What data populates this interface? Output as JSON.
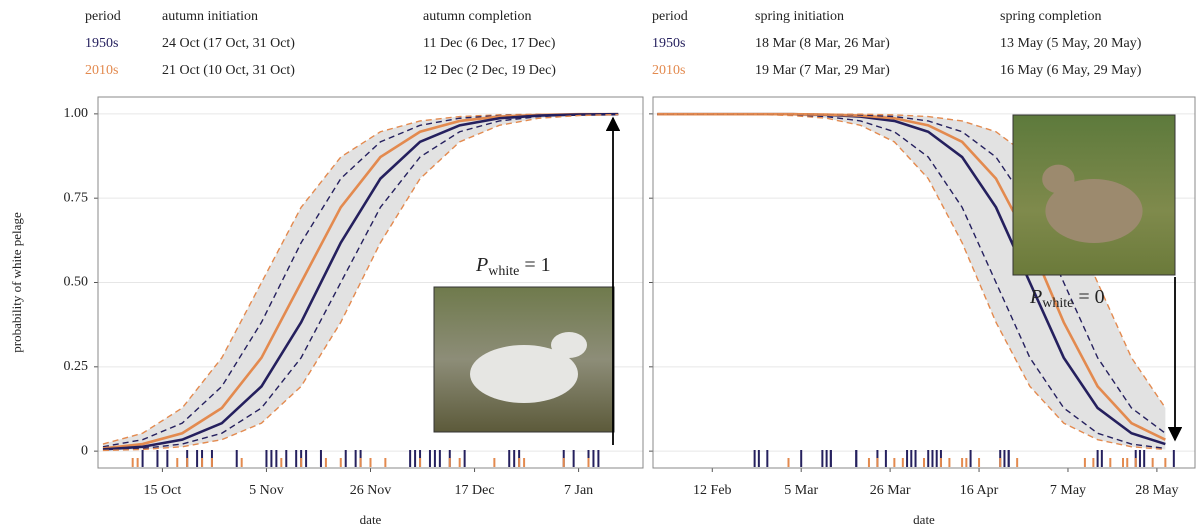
{
  "tables": [
    {
      "columns": [
        "period",
        "autumn initiation",
        "autumn completion"
      ],
      "rows": [
        {
          "color": "#25205e",
          "cells": [
            "1950s",
            "24 Oct (17 Oct, 31 Oct)",
            "11 Dec (6 Dec, 17 Dec)"
          ]
        },
        {
          "color": "#e38a4f",
          "cells": [
            "2010s",
            "21 Oct (10 Oct, 31 Oct)",
            "12 Dec (2 Dec, 19 Dec)"
          ]
        }
      ]
    },
    {
      "columns": [
        "period",
        "spring initiation",
        "spring completion"
      ],
      "rows": [
        {
          "color": "#25205e",
          "cells": [
            "1950s",
            "18 Mar (8 Mar, 26 Mar)",
            "13 May (5 May, 20 May)"
          ]
        },
        {
          "color": "#e38a4f",
          "cells": [
            "2010s",
            "19 Mar (7 Mar, 29 Mar)",
            "16 May (6 May, 29 May)"
          ]
        }
      ]
    }
  ],
  "chart_data": [
    {
      "type": "line",
      "ylabel": "probability of white pelage",
      "xlabel": "date",
      "xlim": [
        275,
        385
      ],
      "ylim": [
        -0.05,
        1.05
      ],
      "xticks": [
        {
          "value": 288,
          "label": "15 Oct"
        },
        {
          "value": 309,
          "label": "5 Nov"
        },
        {
          "value": 330,
          "label": "26 Nov"
        },
        {
          "value": 351,
          "label": "17 Dec"
        },
        {
          "value": 372,
          "label": "7 Jan"
        }
      ],
      "yticks": [
        0,
        0.25,
        {
          "value": 0.5,
          "label": "0.50"
        },
        0.75,
        {
          "value": 1,
          "label": "1.00"
        }
      ],
      "show_ytick_labels": true,
      "grid": true,
      "ribbon_color": "#e2e2e2",
      "x": [
        276,
        284,
        292,
        300,
        308,
        316,
        324,
        332,
        340,
        348,
        356,
        364,
        372,
        380
      ],
      "series": [
        {
          "color": "#e38a4f",
          "dashed": true,
          "values": [
            0.021,
            0.053,
            0.128,
            0.277,
            0.5,
            0.723,
            0.872,
            0.947,
            0.979,
            0.992,
            0.997,
            0.999,
            0.999,
            0.999
          ]
        },
        {
          "color": "#25205e",
          "dashed": true,
          "values": [
            0.013,
            0.034,
            0.083,
            0.192,
            0.382,
            0.618,
            0.808,
            0.917,
            0.966,
            0.987,
            0.995,
            0.998,
            0.999,
            0.999
          ]
        },
        {
          "color": "#e38a4f",
          "dashed": false,
          "values": [
            0.008,
            0.021,
            0.053,
            0.128,
            0.277,
            0.5,
            0.723,
            0.872,
            0.947,
            0.979,
            0.992,
            0.997,
            0.999,
            0.999
          ]
        },
        {
          "color": "#25205e",
          "dashed": false,
          "values": [
            0.005,
            0.013,
            0.034,
            0.083,
            0.192,
            0.382,
            0.618,
            0.808,
            0.917,
            0.966,
            0.987,
            0.995,
            0.998,
            0.999
          ]
        },
        {
          "color": "#25205e",
          "dashed": true,
          "values": [
            0.003,
            0.008,
            0.021,
            0.053,
            0.128,
            0.277,
            0.5,
            0.723,
            0.872,
            0.947,
            0.979,
            0.992,
            0.997,
            0.999
          ]
        },
        {
          "color": "#e38a4f",
          "dashed": true,
          "values": [
            0.002,
            0.005,
            0.013,
            0.034,
            0.083,
            0.192,
            0.382,
            0.618,
            0.808,
            0.917,
            0.966,
            0.987,
            0.995,
            0.998
          ]
        }
      ],
      "rug": [
        {
          "color": "#25205e",
          "x": [
            284,
            287,
            289,
            293,
            295,
            296,
            298,
            303,
            309,
            310,
            311,
            313,
            315,
            316,
            317,
            320,
            325,
            327,
            328,
            338,
            339,
            340,
            342,
            343,
            344,
            346,
            349,
            358,
            359,
            360,
            369,
            371,
            374,
            375,
            376
          ]
        },
        {
          "color": "#e38a4f",
          "x": [
            282,
            283,
            291,
            293,
            296,
            298,
            304,
            312,
            316,
            321,
            324,
            328,
            330,
            333,
            340,
            346,
            348,
            355,
            360,
            361,
            369,
            374
          ]
        }
      ],
      "annotation": {
        "symbol": "P",
        "subscript": "white",
        "text": "= 1",
        "direction": "up"
      }
    },
    {
      "type": "line",
      "xlabel": "date",
      "xlim": [
        29,
        157
      ],
      "ylim": [
        -0.05,
        1.05
      ],
      "xticks": [
        {
          "value": 43,
          "label": "12 Feb"
        },
        {
          "value": 64,
          "label": "5 Mar"
        },
        {
          "value": 85,
          "label": "26 Mar"
        },
        {
          "value": 106,
          "label": "16 Apr"
        },
        {
          "value": 127,
          "label": "7 May"
        },
        {
          "value": 148,
          "label": "28 May"
        }
      ],
      "yticks": [
        0,
        0.25,
        0.5,
        0.75,
        1
      ],
      "show_ytick_labels": false,
      "grid": true,
      "ribbon_color": "#e2e2e2",
      "x": [
        30,
        38,
        46,
        54,
        62,
        70,
        78,
        86,
        94,
        102,
        110,
        118,
        126,
        134,
        142,
        150
      ],
      "series": [
        {
          "color": "#e38a4f",
          "dashed": true,
          "values": [
            0.999,
            0.999,
            0.999,
            0.998,
            0.995,
            0.987,
            0.966,
            0.917,
            0.808,
            0.618,
            0.382,
            0.192,
            0.083,
            0.034,
            0.013,
            0.005
          ]
        },
        {
          "color": "#25205e",
          "dashed": true,
          "values": [
            0.999,
            0.999,
            0.999,
            0.999,
            0.997,
            0.992,
            0.979,
            0.947,
            0.872,
            0.723,
            0.5,
            0.277,
            0.128,
            0.053,
            0.021,
            0.008
          ]
        },
        {
          "color": "#25205e",
          "dashed": false,
          "values": [
            0.999,
            0.999,
            0.999,
            0.999,
            0.999,
            0.997,
            0.992,
            0.979,
            0.947,
            0.872,
            0.723,
            0.5,
            0.277,
            0.128,
            0.053,
            0.021
          ]
        },
        {
          "color": "#e38a4f",
          "dashed": false,
          "values": [
            0.999,
            0.999,
            0.999,
            0.999,
            0.999,
            0.998,
            0.995,
            0.987,
            0.966,
            0.917,
            0.808,
            0.618,
            0.382,
            0.192,
            0.083,
            0.034
          ]
        },
        {
          "color": "#25205e",
          "dashed": true,
          "values": [
            0.999,
            0.999,
            0.999,
            0.999,
            0.999,
            0.999,
            0.997,
            0.992,
            0.979,
            0.947,
            0.872,
            0.723,
            0.5,
            0.277,
            0.128,
            0.053
          ]
        },
        {
          "color": "#e38a4f",
          "dashed": true,
          "values": [
            0.999,
            0.999,
            0.999,
            0.999,
            0.999,
            0.999,
            0.999,
            0.997,
            0.992,
            0.979,
            0.947,
            0.872,
            0.723,
            0.5,
            0.277,
            0.128
          ]
        }
      ],
      "rug": [
        {
          "color": "#25205e",
          "x": [
            53,
            54,
            56,
            64,
            69,
            70,
            71,
            71,
            77,
            77,
            82,
            84,
            89,
            90,
            91,
            94,
            95,
            96,
            97,
            104,
            111,
            112,
            113,
            113,
            134,
            135,
            143,
            144,
            145,
            152
          ]
        },
        {
          "color": "#e38a4f",
          "x": [
            61,
            80,
            82,
            86,
            88,
            93,
            97,
            99,
            102,
            103,
            106,
            111,
            115,
            131,
            133,
            137,
            140,
            141,
            143,
            147,
            150
          ]
        }
      ],
      "annotation": {
        "symbol": "P",
        "subscript": "white",
        "text": "= 0",
        "direction": "down"
      }
    }
  ]
}
